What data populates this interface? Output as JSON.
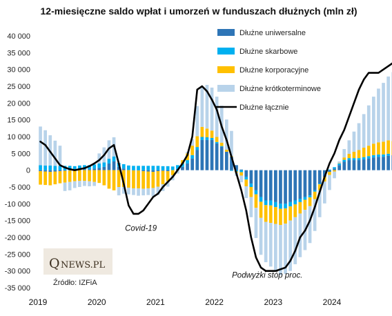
{
  "chart_data": {
    "type": "bar",
    "title": "12-miesięczne saldo wpłat i umorzeń w funduszach dłużnych (mln zł)",
    "ylim": [
      -35000,
      40000
    ],
    "yticks": [
      40000,
      35000,
      30000,
      25000,
      20000,
      15000,
      10000,
      5000,
      0,
      -5000,
      -10000,
      -15000,
      -20000,
      -25000,
      -30000,
      -35000
    ],
    "ytick_labels": [
      "40 000",
      "35 000",
      "30 000",
      "25 000",
      "20 000",
      "15 000",
      "10 000",
      "5 000",
      "0",
      "-5 000",
      "-10 000",
      "-15 000",
      "-20 000",
      "-25 000",
      "-30 000",
      "-35 000"
    ],
    "xtick_labels": [
      "2019",
      "2020",
      "2021",
      "2022",
      "2023",
      "2024"
    ],
    "start_year": 2019,
    "grid": false,
    "legend_position": "top-right",
    "legend": [
      {
        "name": "Dłużne uniwersalne",
        "color": "#2e75b6",
        "kind": "box"
      },
      {
        "name": "Dłużne skarbowe",
        "color": "#00b0f0",
        "kind": "box"
      },
      {
        "name": "Dłużne korporacyjne",
        "color": "#ffc000",
        "kind": "box"
      },
      {
        "name": "Dłużne krótkoterminowe",
        "color": "#b8d3ea",
        "kind": "box"
      },
      {
        "name": "Dłużne łącznie",
        "color": "#000000",
        "kind": "line"
      }
    ],
    "series": [
      {
        "name": "Dłużne uniwersalne",
        "color": "#2e75b6",
        "values": [
          -300,
          -400,
          -500,
          -400,
          -300,
          -200,
          -100,
          0,
          200,
          300,
          300,
          500,
          700,
          1000,
          2000,
          2600,
          1000,
          500,
          0,
          -100,
          -100,
          -300,
          -400,
          -500,
          -300,
          -200,
          -300,
          0,
          400,
          1000,
          2000,
          3500,
          6000,
          9000,
          9000,
          9000,
          8000,
          7000,
          5500,
          4000,
          1500,
          200,
          -2000,
          -4000,
          -6000,
          -8000,
          -9000,
          -9000,
          -9500,
          -10000,
          -10000,
          -9500,
          -9000,
          -8500,
          -8000,
          -7500,
          -6000,
          -4000,
          -2000,
          -500,
          500,
          1500,
          2500,
          3000,
          3000,
          3000,
          3200,
          3500,
          3800,
          4000,
          4000,
          4300,
          4500,
          4800,
          5000
        ]
      },
      {
        "name": "Dłużne skarbowe",
        "color": "#00b0f0",
        "values": [
          1500,
          1400,
          1400,
          1300,
          1300,
          1300,
          1300,
          1200,
          1200,
          1200,
          1200,
          1200,
          1300,
          1300,
          1400,
          1500,
          1200,
          1300,
          1400,
          1300,
          1300,
          1300,
          1300,
          1300,
          1300,
          1200,
          1200,
          1100,
          1100,
          1000,
          1000,
          1000,
          900,
          900,
          800,
          600,
          400,
          200,
          0,
          -200,
          -400,
          -600,
          -800,
          -1000,
          -1200,
          -1400,
          -1400,
          -1500,
          -1500,
          -1500,
          -1400,
          -1300,
          -1200,
          -1000,
          -800,
          -600,
          -400,
          -200,
          0,
          200,
          400,
          500,
          600,
          600,
          600,
          600,
          700,
          700,
          700,
          700,
          700,
          600,
          0,
          -300,
          -500
        ]
      },
      {
        "name": "Dłużne korporacyjne",
        "color": "#ffc000",
        "values": [
          -4000,
          -4000,
          -4000,
          -3800,
          -3600,
          -3500,
          -3400,
          -3300,
          -3200,
          -3200,
          -3300,
          -3500,
          -3800,
          -4500,
          -5500,
          -6000,
          -5000,
          -5000,
          -5200,
          -5300,
          -5300,
          -5200,
          -5000,
          -4800,
          -4600,
          -4000,
          -3000,
          -1500,
          0,
          1000,
          2000,
          2800,
          3200,
          3000,
          2600,
          2200,
          1500,
          1000,
          600,
          200,
          -300,
          -1000,
          -2000,
          -3000,
          -4000,
          -4800,
          -5000,
          -5200,
          -5000,
          -4800,
          -4500,
          -4200,
          -3800,
          -3400,
          -3000,
          -2600,
          -2200,
          -1800,
          -1400,
          -900,
          -400,
          100,
          700,
          1300,
          1900,
          2400,
          2800,
          3100,
          3400,
          3600,
          3800,
          4000,
          4200,
          4400,
          4800
        ]
      },
      {
        "name": "Dłużne krótkoterminowe",
        "color": "#b8d3ea",
        "values": [
          11500,
          10500,
          9000,
          7500,
          6000,
          -2500,
          -2500,
          -2000,
          -1800,
          -1500,
          -1500,
          -1200,
          3000,
          4500,
          5500,
          5700,
          -2500,
          -2000,
          -2000,
          -2000,
          -2200,
          -2000,
          -2000,
          -2500,
          -2500,
          -2000,
          -1600,
          -1500,
          -1000,
          0,
          500,
          2000,
          9000,
          12000,
          13000,
          12800,
          12000,
          11000,
          9000,
          7500,
          -1000,
          -2000,
          -3500,
          -6000,
          -9000,
          -11000,
          -12000,
          -13000,
          -14000,
          -15000,
          -15000,
          -15000,
          -14000,
          -13000,
          -12000,
          -11000,
          -9500,
          -8000,
          -6500,
          -4500,
          -2000,
          500,
          2500,
          4000,
          6000,
          8000,
          10000,
          12000,
          14000,
          16000,
          17500,
          19000,
          20500,
          22000,
          24000
        ]
      }
    ],
    "total": {
      "name": "Dłużne łącznie",
      "color": "#000000",
      "values": [
        8500,
        7500,
        5500,
        3500,
        1500,
        800,
        300,
        0,
        300,
        600,
        1200,
        2000,
        3000,
        4500,
        6500,
        7500,
        2000,
        -4000,
        -10500,
        -13000,
        -13000,
        -12000,
        -10000,
        -8000,
        -7000,
        -5000,
        -3500,
        -2000,
        0,
        2000,
        4500,
        10000,
        24000,
        25000,
        23500,
        21000,
        18000,
        13000,
        9000,
        4000,
        -1000,
        -6000,
        -12000,
        -20000,
        -26000,
        -29000,
        -30000,
        -30000,
        -30000,
        -29500,
        -29000,
        -27000,
        -24000,
        -20000,
        -18000,
        -15000,
        -11000,
        -6500,
        -2000,
        2000,
        5000,
        9000,
        12000,
        16000,
        20000,
        24000,
        27000,
        29000,
        29000,
        29000,
        30000,
        31000,
        32000,
        33000,
        35000
      ]
    },
    "annotations": [
      {
        "text": "Covid-19",
        "x": 2020.75,
        "y": -18000
      },
      {
        "text": "Podwyżki stóp proc.",
        "x": 2022.9,
        "y": -32000
      }
    ],
    "source": "Źródło: IZFiA",
    "logo": {
      "q": "Q",
      "rest": "NEWS.PL"
    }
  }
}
